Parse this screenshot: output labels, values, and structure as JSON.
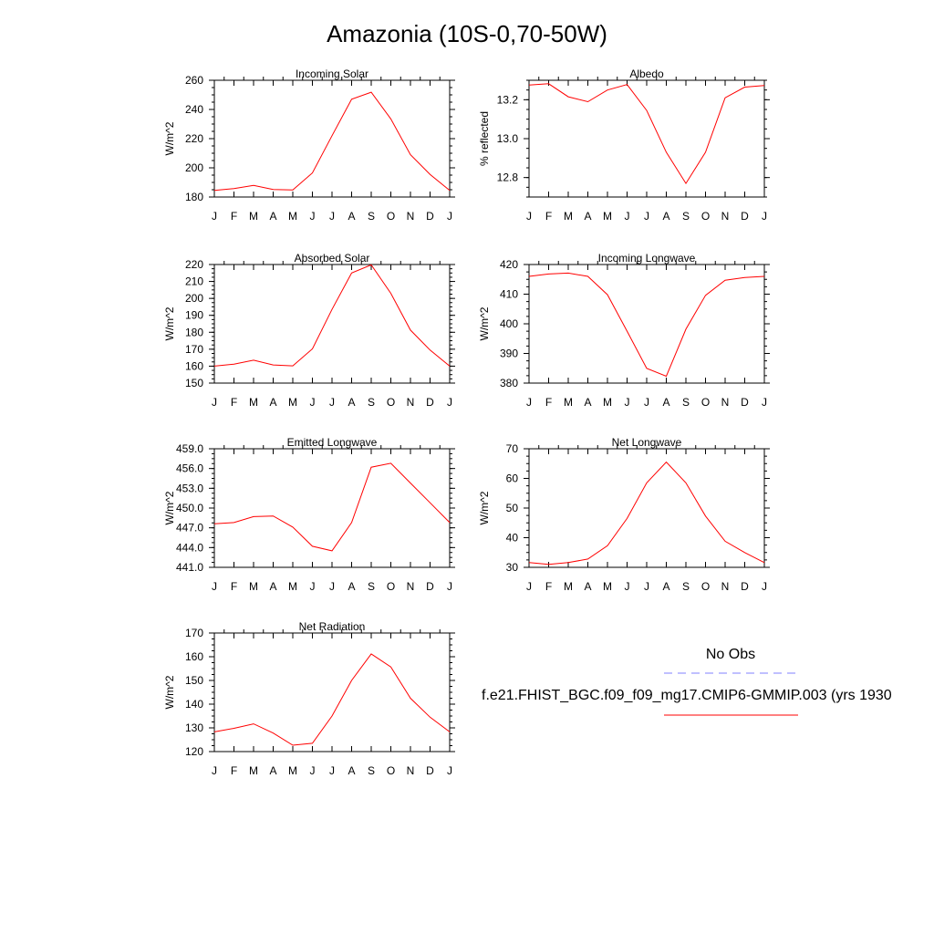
{
  "figure": {
    "title": "Amazonia (10S-0,70-50W)"
  },
  "legend": {
    "obs_label": "No Obs",
    "obs_color": "#8080ff",
    "model_label": "f.e21.FHIST_BGC.f09_f09_mg17.CMIP6-GMMIP.003 (yrs 1930",
    "model_color": "#ff0000"
  },
  "chart_data": [
    {
      "type": "line",
      "title": "Incoming Solar",
      "ylabel": "W/m^2",
      "categories": [
        "J",
        "F",
        "M",
        "A",
        "M",
        "J",
        "J",
        "A",
        "S",
        "O",
        "N",
        "D",
        "J"
      ],
      "ylim": [
        180,
        260
      ],
      "yticks": [
        180,
        200,
        220,
        240,
        260
      ],
      "yticklabels": [
        "180",
        "200",
        "220",
        "240",
        "260"
      ],
      "series": [
        {
          "values": [
            184.5,
            185.8,
            188.0,
            185.2,
            184.8,
            196.5,
            222.0,
            247.0,
            251.8,
            233.5,
            209.0,
            195.5,
            184.5
          ]
        }
      ]
    },
    {
      "type": "line",
      "title": "Albedo",
      "ylabel": "% reflected",
      "categories": [
        "J",
        "F",
        "M",
        "A",
        "M",
        "J",
        "J",
        "A",
        "S",
        "O",
        "N",
        "D",
        "J"
      ],
      "ylim": [
        12.7,
        13.3
      ],
      "yticks": [
        12.8,
        13.0,
        13.2
      ],
      "yticklabels": [
        "12.8",
        "13.0",
        "13.2"
      ],
      "series": [
        {
          "values": [
            13.275,
            13.282,
            13.215,
            13.19,
            13.25,
            13.278,
            13.145,
            12.93,
            12.77,
            12.93,
            13.21,
            13.265,
            13.273
          ]
        }
      ]
    },
    {
      "type": "line",
      "title": "Absorbed Solar",
      "ylabel": "W/m^2",
      "categories": [
        "J",
        "F",
        "M",
        "A",
        "M",
        "J",
        "J",
        "A",
        "S",
        "O",
        "N",
        "D",
        "J"
      ],
      "ylim": [
        150,
        220
      ],
      "yticks": [
        150,
        160,
        170,
        180,
        190,
        200,
        210,
        220
      ],
      "yticklabels": [
        "150",
        "160",
        "170",
        "180",
        "190",
        "200",
        "210",
        "220"
      ],
      "series": [
        {
          "values": [
            160.0,
            161.2,
            163.5,
            160.7,
            160.2,
            170.2,
            193.5,
            215.0,
            219.8,
            203.0,
            181.3,
            169.5,
            160.0
          ]
        }
      ]
    },
    {
      "type": "line",
      "title": "Incoming Longwave",
      "ylabel": "W/m^2",
      "categories": [
        "J",
        "F",
        "M",
        "A",
        "M",
        "J",
        "J",
        "A",
        "S",
        "O",
        "N",
        "D",
        "J"
      ],
      "ylim": [
        380,
        420
      ],
      "yticks": [
        380,
        390,
        400,
        410,
        420
      ],
      "yticklabels": [
        "380",
        "390",
        "400",
        "410",
        "420"
      ],
      "series": [
        {
          "values": [
            416.0,
            416.8,
            417.1,
            416.0,
            409.8,
            397.5,
            385.0,
            382.3,
            398.2,
            409.6,
            414.7,
            415.6,
            416.0
          ]
        }
      ]
    },
    {
      "type": "line",
      "title": "Emitted Longwave",
      "ylabel": "W/m^2",
      "categories": [
        "J",
        "F",
        "M",
        "A",
        "M",
        "J",
        "J",
        "A",
        "S",
        "O",
        "N",
        "D",
        "J"
      ],
      "ylim": [
        441,
        459
      ],
      "yticks": [
        441,
        444,
        447,
        450,
        453,
        456,
        459
      ],
      "yticklabels": [
        "441.0",
        "444.0",
        "447.0",
        "450.0",
        "453.0",
        "456.0",
        "459.0"
      ],
      "series": [
        {
          "values": [
            447.6,
            447.8,
            448.7,
            448.8,
            447.1,
            444.2,
            443.5,
            447.8,
            456.2,
            456.8,
            453.8,
            450.8,
            447.8
          ]
        }
      ]
    },
    {
      "type": "line",
      "title": "Net Longwave",
      "ylabel": "W/m^2",
      "categories": [
        "J",
        "F",
        "M",
        "A",
        "M",
        "J",
        "J",
        "A",
        "S",
        "O",
        "N",
        "D",
        "J"
      ],
      "ylim": [
        30,
        70
      ],
      "yticks": [
        30,
        40,
        50,
        60,
        70
      ],
      "yticklabels": [
        "30",
        "40",
        "50",
        "60",
        "70"
      ],
      "series": [
        {
          "values": [
            31.6,
            31.0,
            31.6,
            32.8,
            37.3,
            46.5,
            58.5,
            65.5,
            58.5,
            47.3,
            38.8,
            35.0,
            31.6
          ]
        }
      ]
    },
    {
      "type": "line",
      "title": "Net Radiation",
      "ylabel": "W/m^2",
      "categories": [
        "J",
        "F",
        "M",
        "A",
        "M",
        "J",
        "J",
        "A",
        "S",
        "O",
        "N",
        "D",
        "J"
      ],
      "ylim": [
        120,
        170
      ],
      "yticks": [
        120,
        130,
        140,
        150,
        160,
        170
      ],
      "yticklabels": [
        "120",
        "130",
        "140",
        "150",
        "160",
        "170"
      ],
      "series": [
        {
          "values": [
            128.3,
            129.8,
            131.7,
            127.8,
            122.7,
            123.5,
            135.0,
            150.0,
            161.2,
            155.7,
            142.5,
            134.5,
            128.3
          ]
        }
      ]
    }
  ]
}
